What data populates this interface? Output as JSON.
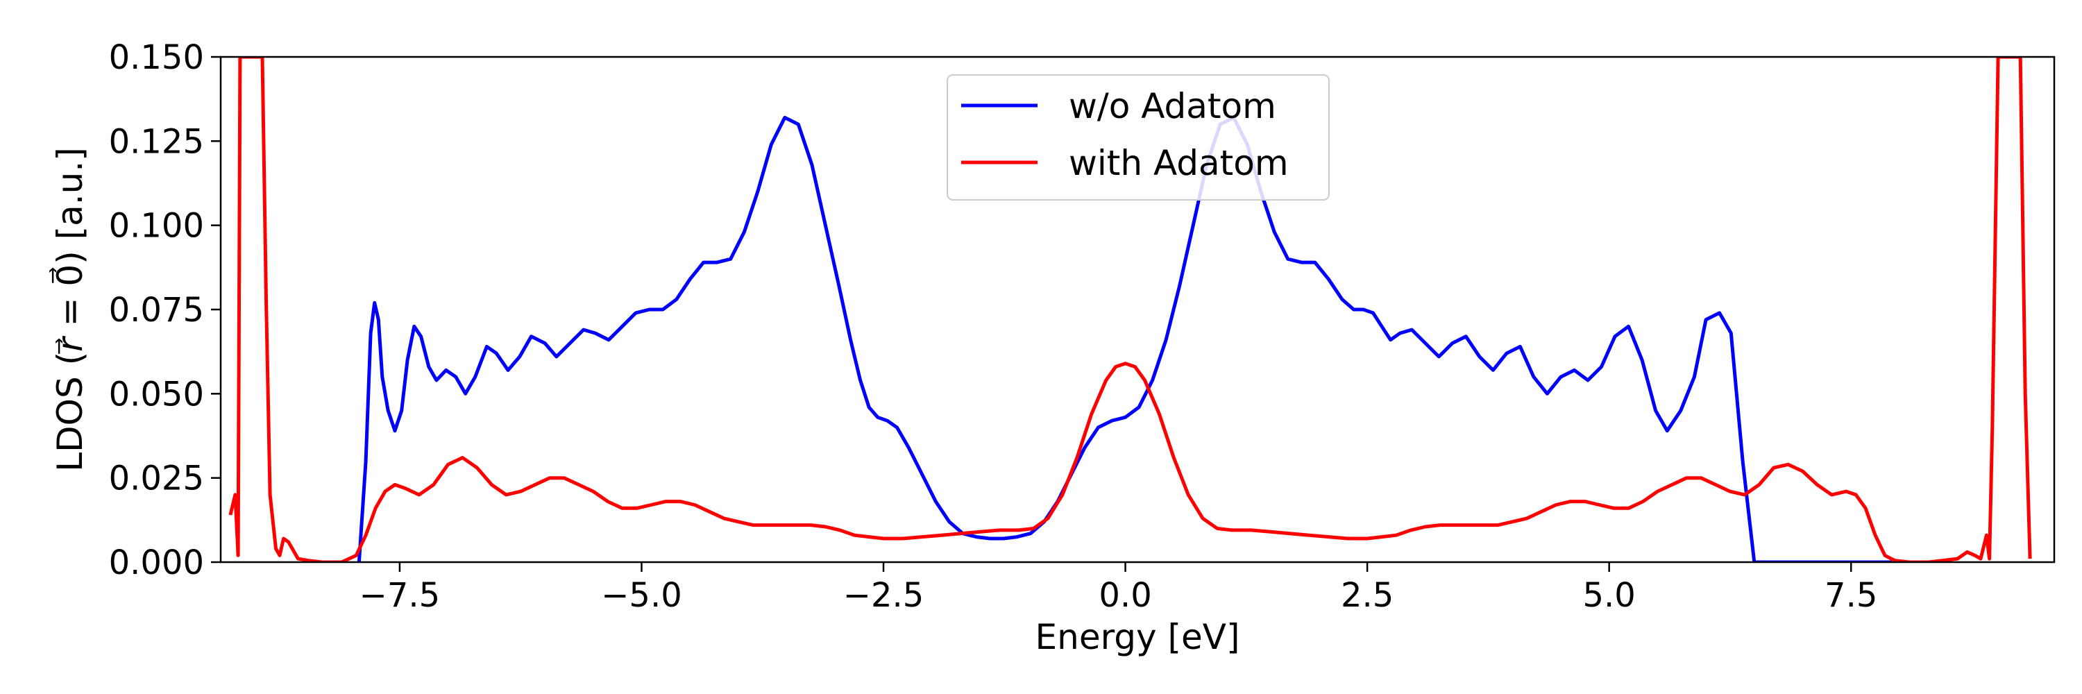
{
  "chart_data": {
    "type": "line",
    "title": "",
    "xlabel": "Energy [eV]",
    "ylabel": "LDOS ($\\vec{r}=\\vec{0}$) [a.u.]",
    "xlim": [
      -9.35,
      9.6
    ],
    "ylim": [
      0,
      0.15
    ],
    "x_ticks": [
      -7.5,
      -5.0,
      -2.5,
      0.0,
      2.5,
      5.0,
      7.5
    ],
    "x_tick_labels": [
      "−7.5",
      "−5.0",
      "−2.5",
      "0.0",
      "2.5",
      "5.0",
      "7.5"
    ],
    "y_ticks": [
      0.0,
      0.025,
      0.05,
      0.075,
      0.1,
      0.125,
      0.15
    ],
    "y_tick_labels": [
      "0.000",
      "0.025",
      "0.050",
      "0.075",
      "0.100",
      "0.125",
      "0.150"
    ],
    "grid": false,
    "legend_position": "top-center",
    "series": [
      {
        "name": "w/o Adatom",
        "color": "#0000ff",
        "x": [
          -7.92,
          -7.85,
          -7.8,
          -7.76,
          -7.72,
          -7.68,
          -7.62,
          -7.55,
          -7.48,
          -7.42,
          -7.35,
          -7.28,
          -7.2,
          -7.12,
          -7.02,
          -6.92,
          -6.82,
          -6.72,
          -6.6,
          -6.5,
          -6.38,
          -6.26,
          -6.14,
          -6.0,
          -5.88,
          -5.74,
          -5.6,
          -5.48,
          -5.34,
          -5.2,
          -5.06,
          -4.92,
          -4.78,
          -4.64,
          -4.5,
          -4.36,
          -4.22,
          -4.08,
          -3.94,
          -3.8,
          -3.66,
          -3.52,
          -3.38,
          -3.24,
          -3.1,
          -2.96,
          -2.84,
          -2.74,
          -2.65,
          -2.56,
          -2.46,
          -2.36,
          -2.24,
          -2.1,
          -1.96,
          -1.82,
          -1.68,
          -1.54,
          -1.4,
          -1.26,
          -1.12,
          -0.98,
          -0.84,
          -0.7,
          -0.56,
          -0.42,
          -0.28,
          -0.14,
          0.0,
          0.14,
          0.28,
          0.42,
          0.56,
          0.7,
          0.84,
          0.98,
          1.12,
          1.26,
          1.4,
          1.54,
          1.68,
          1.82,
          1.96,
          2.1,
          2.24,
          2.36,
          2.46,
          2.56,
          2.65,
          2.74,
          2.84,
          2.96,
          3.1,
          3.24,
          3.38,
          3.52,
          3.66,
          3.8,
          3.94,
          4.08,
          4.22,
          4.36,
          4.5,
          4.64,
          4.78,
          4.92,
          5.06,
          5.2,
          5.34,
          5.48,
          5.6,
          5.74,
          5.88,
          6.0,
          6.14,
          6.26,
          6.38,
          6.5,
          6.6,
          6.72,
          6.82,
          6.92,
          7.02,
          7.12,
          7.2,
          7.28,
          7.35,
          7.42,
          7.48,
          7.55,
          7.62,
          7.68,
          7.72,
          7.76,
          7.8,
          7.85,
          7.92
        ],
        "y": [
          0.0,
          0.03,
          0.068,
          0.077,
          0.072,
          0.055,
          0.045,
          0.039,
          0.045,
          0.06,
          0.07,
          0.067,
          0.058,
          0.054,
          0.057,
          0.055,
          0.05,
          0.055,
          0.064,
          0.062,
          0.057,
          0.061,
          0.067,
          0.065,
          0.061,
          0.065,
          0.069,
          0.068,
          0.066,
          0.07,
          0.074,
          0.075,
          0.075,
          0.078,
          0.084,
          0.089,
          0.089,
          0.09,
          0.098,
          0.11,
          0.124,
          0.132,
          0.13,
          0.118,
          0.1,
          0.082,
          0.066,
          0.054,
          0.046,
          0.043,
          0.042,
          0.04,
          0.034,
          0.026,
          0.018,
          0.012,
          0.0085,
          0.0075,
          0.007,
          0.007,
          0.0075,
          0.0085,
          0.012,
          0.018,
          0.026,
          0.034,
          0.04,
          0.042,
          0.043,
          0.046,
          0.054,
          0.066,
          0.082,
          0.1,
          0.118,
          0.13,
          0.132,
          0.124,
          0.11,
          0.098,
          0.09,
          0.089,
          0.089,
          0.084,
          0.078,
          0.075,
          0.075,
          0.074,
          0.07,
          0.066,
          0.068,
          0.069,
          0.065,
          0.061,
          0.065,
          0.067,
          0.061,
          0.057,
          0.062,
          0.064,
          0.055,
          0.05,
          0.055,
          0.057,
          0.054,
          0.058,
          0.067,
          0.07,
          0.06,
          0.045,
          0.039,
          0.045,
          0.055,
          0.072,
          0.074,
          0.068,
          0.03,
          0.0,
          0.0,
          0.0,
          0.0,
          0.0,
          0.0,
          0.0,
          0.0,
          0.0,
          0.0,
          0.0,
          0.0,
          0.0,
          0.0,
          0.0,
          0.0,
          0.0,
          0.0,
          0.0,
          0.0
        ]
      },
      {
        "name": "with Adatom",
        "color": "#ff0000",
        "x": [
          -9.25,
          -9.2,
          -9.17,
          -9.15,
          -9.13,
          -8.92,
          -8.88,
          -8.84,
          -8.78,
          -8.74,
          -8.7,
          -8.65,
          -8.55,
          -8.45,
          -8.3,
          -8.1,
          -7.95,
          -7.85,
          -7.75,
          -7.65,
          -7.55,
          -7.45,
          -7.3,
          -7.15,
          -7.0,
          -6.85,
          -6.7,
          -6.55,
          -6.4,
          -6.25,
          -6.1,
          -5.95,
          -5.8,
          -5.65,
          -5.5,
          -5.35,
          -5.2,
          -5.05,
          -4.9,
          -4.75,
          -4.6,
          -4.45,
          -4.3,
          -4.15,
          -4.0,
          -3.85,
          -3.7,
          -3.55,
          -3.4,
          -3.25,
          -3.1,
          -2.95,
          -2.8,
          -2.65,
          -2.5,
          -2.3,
          -2.1,
          -1.9,
          -1.7,
          -1.5,
          -1.3,
          -1.1,
          -0.95,
          -0.8,
          -0.65,
          -0.5,
          -0.35,
          -0.2,
          -0.1,
          0.0,
          0.1,
          0.2,
          0.35,
          0.5,
          0.65,
          0.8,
          0.95,
          1.1,
          1.3,
          1.5,
          1.7,
          1.9,
          2.1,
          2.3,
          2.5,
          2.65,
          2.8,
          2.95,
          3.1,
          3.25,
          3.4,
          3.55,
          3.7,
          3.85,
          4.0,
          4.15,
          4.3,
          4.45,
          4.6,
          4.75,
          4.9,
          5.05,
          5.2,
          5.35,
          5.5,
          5.65,
          5.8,
          5.95,
          6.1,
          6.25,
          6.4,
          6.55,
          6.7,
          6.85,
          7.0,
          7.15,
          7.3,
          7.45,
          7.55,
          7.65,
          7.75,
          7.85,
          7.95,
          8.1,
          8.3,
          8.45,
          8.6,
          8.7,
          8.78,
          8.84,
          8.9,
          8.93,
          8.96,
          9.02,
          9.2,
          9.25,
          9.3,
          9.35
        ],
        "y": [
          0.014,
          0.02,
          0.002,
          0.15,
          0.15,
          0.15,
          0.078,
          0.02,
          0.004,
          0.002,
          0.007,
          0.006,
          0.001,
          0.0005,
          0.0,
          0.0,
          0.002,
          0.008,
          0.016,
          0.021,
          0.023,
          0.022,
          0.02,
          0.023,
          0.029,
          0.031,
          0.028,
          0.023,
          0.02,
          0.021,
          0.023,
          0.025,
          0.025,
          0.023,
          0.021,
          0.018,
          0.016,
          0.016,
          0.017,
          0.018,
          0.018,
          0.017,
          0.015,
          0.013,
          0.012,
          0.011,
          0.011,
          0.011,
          0.011,
          0.011,
          0.0105,
          0.0095,
          0.008,
          0.0075,
          0.007,
          0.007,
          0.0075,
          0.008,
          0.0085,
          0.009,
          0.0095,
          0.0095,
          0.01,
          0.013,
          0.02,
          0.031,
          0.044,
          0.054,
          0.058,
          0.059,
          0.058,
          0.054,
          0.044,
          0.031,
          0.02,
          0.013,
          0.01,
          0.0095,
          0.0095,
          0.009,
          0.0085,
          0.008,
          0.0075,
          0.007,
          0.007,
          0.0075,
          0.008,
          0.0095,
          0.0105,
          0.011,
          0.011,
          0.011,
          0.011,
          0.011,
          0.012,
          0.013,
          0.015,
          0.017,
          0.018,
          0.018,
          0.017,
          0.016,
          0.016,
          0.018,
          0.021,
          0.023,
          0.025,
          0.025,
          0.023,
          0.021,
          0.02,
          0.023,
          0.028,
          0.029,
          0.027,
          0.023,
          0.02,
          0.021,
          0.02,
          0.016,
          0.008,
          0.002,
          0.0005,
          0.0,
          0.0,
          0.0005,
          0.001,
          0.003,
          0.002,
          0.001,
          0.008,
          0.001,
          0.04,
          0.15,
          0.15,
          0.15,
          0.05,
          0.001
        ]
      }
    ]
  }
}
